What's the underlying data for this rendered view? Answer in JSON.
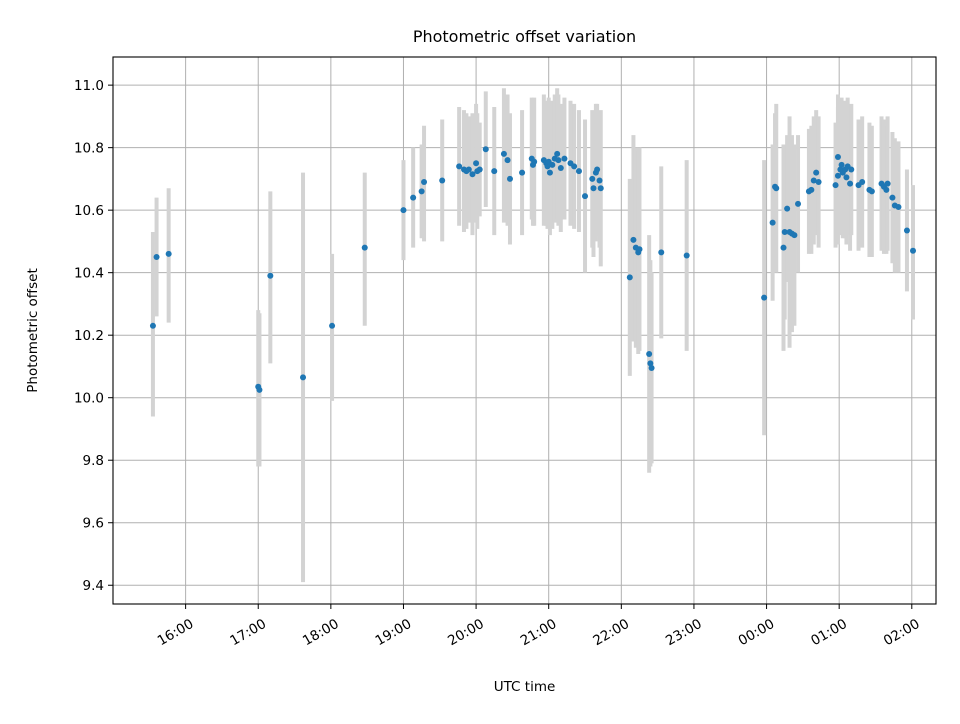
{
  "chart_data": {
    "type": "scatter",
    "title": "Photometric offset variation",
    "xlabel": "UTC time",
    "ylabel": "Photometric offset",
    "grid": true,
    "ylim": [
      9.34,
      11.09
    ],
    "xlim": [
      "15:00",
      "02:20 (+1 day)"
    ],
    "x_ticks": [
      "16:00",
      "17:00",
      "18:00",
      "19:00",
      "20:00",
      "21:00",
      "22:00",
      "23:00",
      "00:00",
      "01:00",
      "02:00"
    ],
    "y_ticks": [
      "9.4",
      "9.6",
      "9.8",
      "10.0",
      "10.2",
      "10.4",
      "10.6",
      "10.8",
      "11.0"
    ],
    "colors": {
      "points": "#1f77b4",
      "errorbars": "#d3d3d3",
      "grid": "#b0b0b0"
    },
    "series": [
      {
        "point_format": [
          "UTC time (HH:MM, +1 day after midnight)",
          "offset",
          "error_low",
          "error_high"
        ],
        "points": [
          [
            "15:33",
            10.23,
            9.94,
            10.53
          ],
          [
            "15:36",
            10.45,
            10.26,
            10.64
          ],
          [
            "15:46",
            10.46,
            10.24,
            10.67
          ],
          [
            "17:00",
            10.035,
            9.78,
            10.28
          ],
          [
            "17:01",
            10.025,
            9.78,
            10.27
          ],
          [
            "17:10",
            10.39,
            10.11,
            10.66
          ],
          [
            "17:37",
            10.065,
            9.41,
            10.72
          ],
          [
            "18:01",
            10.23,
            9.99,
            10.46
          ],
          [
            "18:28",
            10.48,
            10.23,
            10.72
          ],
          [
            "19:00",
            10.6,
            10.44,
            10.76
          ],
          [
            "19:08",
            10.64,
            10.48,
            10.8
          ],
          [
            "19:15",
            10.66,
            10.51,
            10.81
          ],
          [
            "19:17",
            10.69,
            10.5,
            10.87
          ],
          [
            "19:32",
            10.695,
            10.5,
            10.89
          ],
          [
            "19:46",
            10.74,
            10.55,
            10.93
          ],
          [
            "19:50",
            10.73,
            10.53,
            10.92
          ],
          [
            "19:52",
            10.725,
            10.54,
            10.91
          ],
          [
            "19:54",
            10.73,
            10.56,
            10.9
          ],
          [
            "19:57",
            10.715,
            10.52,
            10.91
          ],
          [
            "20:00",
            10.75,
            10.56,
            10.94
          ],
          [
            "20:01",
            10.725,
            10.54,
            10.91
          ],
          [
            "20:03",
            10.73,
            10.58,
            10.88
          ],
          [
            "20:08",
            10.795,
            10.61,
            10.98
          ],
          [
            "20:15",
            10.725,
            10.52,
            10.93
          ],
          [
            "20:23",
            10.78,
            10.56,
            10.99
          ],
          [
            "20:26",
            10.76,
            10.55,
            10.97
          ],
          [
            "20:28",
            10.7,
            10.49,
            10.91
          ],
          [
            "20:38",
            10.72,
            10.52,
            10.92
          ],
          [
            "20:46",
            10.765,
            10.57,
            10.96
          ],
          [
            "20:47",
            10.745,
            10.55,
            10.94
          ],
          [
            "20:48",
            10.755,
            10.55,
            10.96
          ],
          [
            "20:56",
            10.76,
            10.55,
            10.97
          ],
          [
            "20:58",
            10.75,
            10.55,
            10.95
          ],
          [
            "20:59",
            10.74,
            10.54,
            10.94
          ],
          [
            "21:00",
            10.755,
            10.55,
            10.96
          ],
          [
            "21:01",
            10.72,
            10.52,
            10.92
          ],
          [
            "21:03",
            10.745,
            10.54,
            10.95
          ],
          [
            "21:05",
            10.765,
            10.56,
            10.97
          ],
          [
            "21:07",
            10.78,
            10.57,
            10.99
          ],
          [
            "21:08",
            10.76,
            10.55,
            10.97
          ],
          [
            "21:10",
            10.735,
            10.53,
            10.94
          ],
          [
            "21:13",
            10.765,
            10.57,
            10.96
          ],
          [
            "21:18",
            10.75,
            10.55,
            10.95
          ],
          [
            "21:21",
            10.74,
            10.54,
            10.94
          ],
          [
            "21:25",
            10.725,
            10.53,
            10.92
          ],
          [
            "21:30",
            10.645,
            10.4,
            10.89
          ],
          [
            "21:36",
            10.7,
            10.48,
            10.92
          ],
          [
            "21:37",
            10.67,
            10.45,
            10.89
          ],
          [
            "21:39",
            10.72,
            10.5,
            10.94
          ],
          [
            "21:40",
            10.73,
            10.52,
            10.94
          ],
          [
            "21:42",
            10.695,
            10.48,
            10.91
          ],
          [
            "21:43",
            10.67,
            10.42,
            10.92
          ],
          [
            "22:07",
            10.385,
            10.07,
            10.7
          ],
          [
            "22:10",
            10.505,
            10.18,
            10.84
          ],
          [
            "22:12",
            10.48,
            10.16,
            10.8
          ],
          [
            "22:14",
            10.465,
            10.14,
            10.79
          ],
          [
            "22:15",
            10.475,
            10.15,
            10.8
          ],
          [
            "22:23",
            10.14,
            9.76,
            10.52
          ],
          [
            "22:24",
            10.11,
            9.78,
            10.44
          ],
          [
            "22:25",
            10.095,
            9.79,
            10.4
          ],
          [
            "22:33",
            10.465,
            10.19,
            10.74
          ],
          [
            "22:54",
            10.455,
            10.15,
            10.76
          ],
          [
            "23:58",
            10.32,
            9.88,
            10.76
          ],
          [
            "00:05",
            10.56,
            10.31,
            10.81
          ],
          [
            "00:07",
            10.675,
            10.44,
            10.91
          ],
          [
            "00:08",
            10.67,
            10.4,
            10.94
          ],
          [
            "00:14",
            10.48,
            10.15,
            10.81
          ],
          [
            "00:15",
            10.53,
            10.25,
            10.81
          ],
          [
            "00:17",
            10.605,
            10.37,
            10.84
          ],
          [
            "00:19",
            10.53,
            10.16,
            10.9
          ],
          [
            "00:21",
            10.525,
            10.21,
            10.84
          ],
          [
            "00:23",
            10.52,
            10.23,
            10.81
          ],
          [
            "00:26",
            10.62,
            10.4,
            10.84
          ],
          [
            "00:35",
            10.66,
            10.46,
            10.86
          ],
          [
            "00:37",
            10.665,
            10.46,
            10.87
          ],
          [
            "00:39",
            10.695,
            10.49,
            10.9
          ],
          [
            "00:41",
            10.72,
            10.52,
            10.92
          ],
          [
            "00:43",
            10.69,
            10.48,
            10.9
          ],
          [
            "00:57",
            10.68,
            10.48,
            10.88
          ],
          [
            "00:59",
            10.71,
            10.49,
            10.93
          ],
          [
            "00:59",
            10.77,
            10.57,
            10.97
          ],
          [
            "01:01",
            10.73,
            10.52,
            10.94
          ],
          [
            "01:02",
            10.745,
            10.53,
            10.96
          ],
          [
            "01:03",
            10.72,
            10.51,
            10.93
          ],
          [
            "01:05",
            10.73,
            10.51,
            10.95
          ],
          [
            "01:06",
            10.705,
            10.49,
            10.92
          ],
          [
            "01:07",
            10.74,
            10.52,
            10.96
          ],
          [
            "01:09",
            10.685,
            10.47,
            10.9
          ],
          [
            "01:10",
            10.73,
            10.52,
            10.94
          ],
          [
            "01:16",
            10.68,
            10.47,
            10.89
          ],
          [
            "01:19",
            10.69,
            10.48,
            10.9
          ],
          [
            "01:25",
            10.665,
            10.45,
            10.88
          ],
          [
            "01:27",
            10.66,
            10.45,
            10.87
          ],
          [
            "01:35",
            10.685,
            10.47,
            10.9
          ],
          [
            "01:37",
            10.675,
            10.46,
            10.89
          ],
          [
            "01:39",
            10.665,
            10.46,
            10.87
          ],
          [
            "01:40",
            10.685,
            10.47,
            10.9
          ],
          [
            "01:44",
            10.64,
            10.43,
            10.85
          ],
          [
            "01:46",
            10.615,
            10.4,
            10.83
          ],
          [
            "01:49",
            10.61,
            10.4,
            10.82
          ],
          [
            "01:56",
            10.535,
            10.34,
            10.73
          ],
          [
            "02:01",
            10.47,
            10.25,
            10.68
          ]
        ]
      }
    ]
  }
}
